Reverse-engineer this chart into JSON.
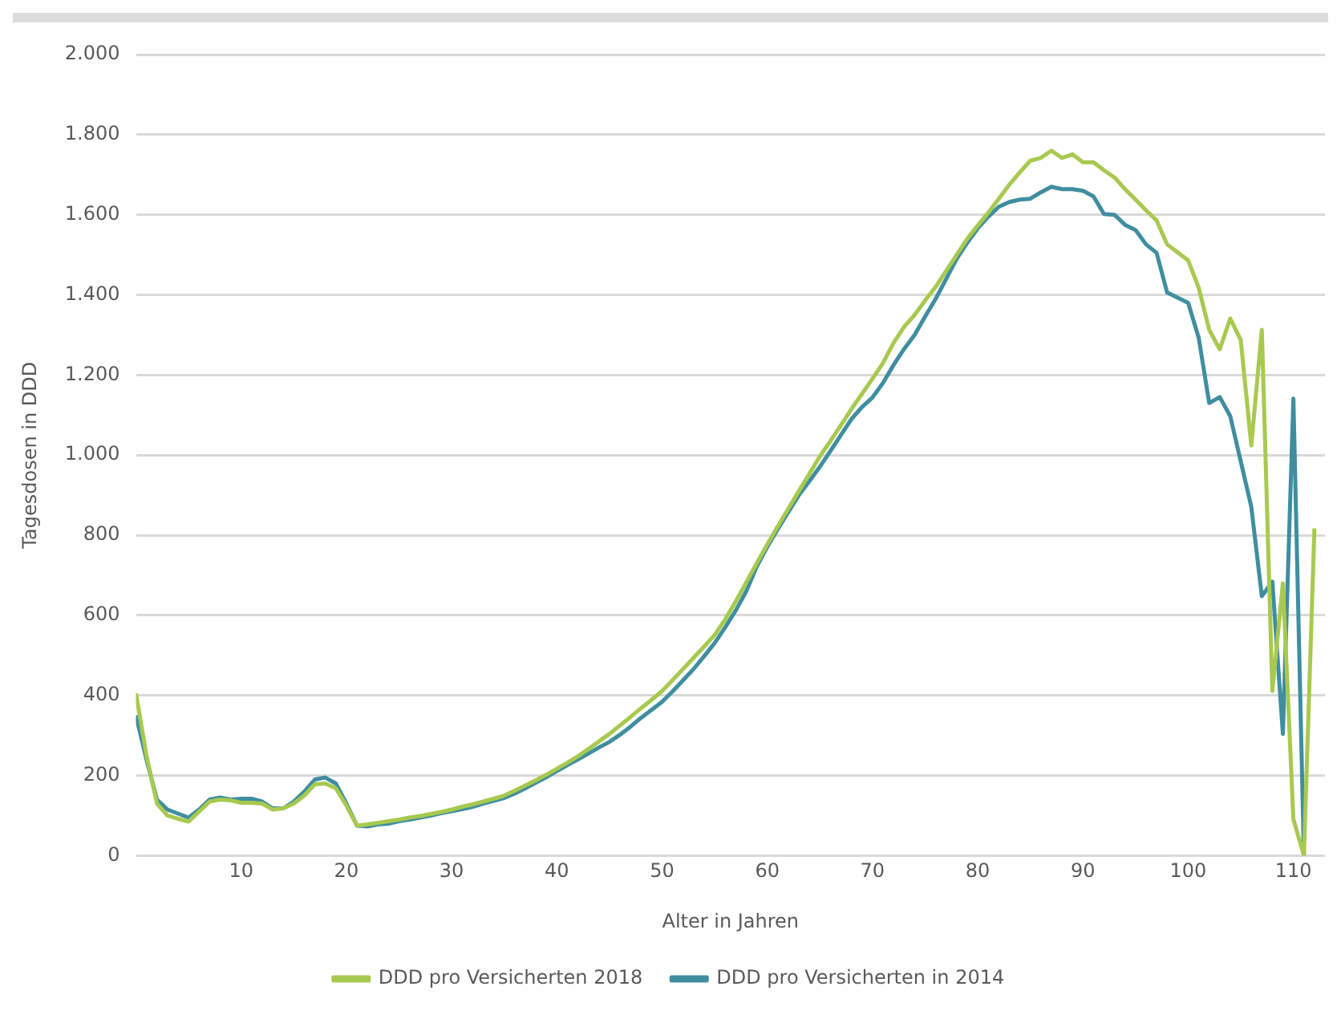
{
  "chart_data": {
    "type": "line",
    "xlabel": "Alter in Jahren",
    "ylabel": "Tagesdosen in DDD",
    "x": [
      0,
      1,
      2,
      3,
      4,
      5,
      6,
      7,
      8,
      9,
      10,
      11,
      12,
      13,
      14,
      15,
      16,
      17,
      18,
      19,
      20,
      21,
      22,
      23,
      24,
      25,
      26,
      27,
      28,
      29,
      30,
      31,
      32,
      33,
      34,
      35,
      36,
      37,
      38,
      39,
      40,
      41,
      42,
      43,
      44,
      45,
      46,
      47,
      48,
      49,
      50,
      51,
      52,
      53,
      54,
      55,
      56,
      57,
      58,
      59,
      60,
      61,
      62,
      63,
      64,
      65,
      66,
      67,
      68,
      69,
      70,
      71,
      72,
      73,
      74,
      75,
      76,
      77,
      78,
      79,
      80,
      81,
      82,
      83,
      84,
      85,
      86,
      87,
      88,
      89,
      90,
      91,
      92,
      93,
      94,
      95,
      96,
      97,
      98,
      99,
      100,
      101,
      102,
      103,
      104,
      105,
      106,
      107,
      108,
      109,
      110,
      111,
      112
    ],
    "xlim": [
      0,
      113
    ],
    "xticks": [
      10,
      20,
      30,
      40,
      50,
      60,
      70,
      80,
      90,
      100,
      110
    ],
    "ylim": [
      0,
      2000
    ],
    "yticks": [
      0,
      200,
      400,
      600,
      800,
      {
        "value": 1000,
        "label": "1.000"
      },
      {
        "value": 1200,
        "label": "1.200"
      },
      {
        "value": 1400,
        "label": "1.400"
      },
      {
        "value": 1600,
        "label": "1.600"
      },
      {
        "value": 1800,
        "label": "1.800"
      },
      {
        "value": 2000,
        "label": "2.000"
      }
    ],
    "grid": "y",
    "legend": "bottom",
    "marker": "none",
    "line_style": "solid",
    "series": [
      {
        "name": "DDD pro Versicherten 2018",
        "color": "#a8c94f",
        "values": [
          405,
          250,
          130,
          100,
          92,
          85,
          110,
          135,
          140,
          138,
          132,
          132,
          130,
          115,
          118,
          130,
          150,
          178,
          180,
          168,
          125,
          75,
          78,
          82,
          86,
          90,
          95,
          99,
          104,
          109,
          115,
          122,
          128,
          135,
          142,
          150,
          162,
          175,
          188,
          202,
          217,
          232,
          248,
          266,
          285,
          304,
          325,
          346,
          368,
          389,
          411,
          438,
          466,
          494,
          522,
          551,
          590,
          635,
          682,
          730,
          777,
          822,
          866,
          910,
          953,
          997,
          1035,
          1075,
          1115,
          1153,
          1191,
          1230,
          1280,
          1320,
          1350,
          1386,
          1420,
          1460,
          1500,
          1540,
          1573,
          1605,
          1640,
          1675,
          1706,
          1735,
          1742,
          1760,
          1742,
          1751,
          1731,
          1731,
          1711,
          1693,
          1664,
          1638,
          1611,
          1586,
          1526,
          1506,
          1486,
          1418,
          1313,
          1264,
          1341,
          1287,
          1024,
          1313,
          411,
          680,
          91,
          0,
          817
        ]
      },
      {
        "name": "DDD pro Versicherten in 2014",
        "color": "#3f8ea0",
        "values": [
          350,
          240,
          140,
          115,
          105,
          95,
          115,
          140,
          145,
          140,
          142,
          142,
          135,
          118,
          118,
          135,
          160,
          190,
          195,
          180,
          130,
          75,
          73,
          78,
          80,
          86,
          90,
          95,
          100,
          106,
          111,
          116,
          122,
          130,
          137,
          144,
          155,
          168,
          182,
          196,
          211,
          226,
          240,
          255,
          270,
          284,
          302,
          322,
          344,
          364,
          384,
          410,
          438,
          466,
          498,
          531,
          570,
          612,
          660,
          722,
          771,
          815,
          858,
          900,
          935,
          971,
          1010,
          1050,
          1090,
          1120,
          1144,
          1180,
          1225,
          1265,
          1300,
          1346,
          1390,
          1440,
          1490,
          1530,
          1566,
          1595,
          1620,
          1632,
          1638,
          1640,
          1656,
          1670,
          1664,
          1664,
          1660,
          1646,
          1602,
          1600,
          1575,
          1562,
          1526,
          1505,
          1406,
          1393,
          1380,
          1293,
          1130,
          1145,
          1097,
          984,
          871,
          648,
          684,
          304,
          1141,
          0,
          null
        ]
      }
    ]
  }
}
